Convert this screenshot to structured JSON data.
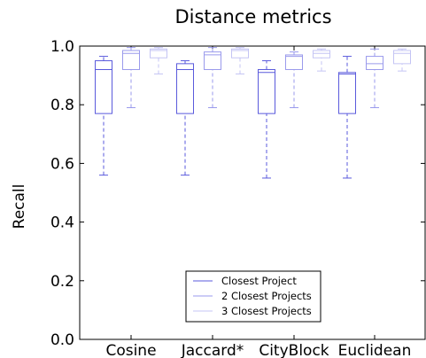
{
  "chart_data": {
    "type": "box",
    "title": "Distance metrics",
    "xlabel": "",
    "ylabel": "Recall",
    "ylim": [
      0.0,
      1.0
    ],
    "yticks": [
      "0.0",
      "0.2",
      "0.4",
      "0.6",
      "0.8",
      "1.0"
    ],
    "categories": [
      "Cosine",
      "Jaccard*",
      "CityBlock",
      "Euclidean"
    ],
    "legend_position": "lower-center",
    "series": [
      {
        "name": "Closest Project",
        "color": "#5a5adc",
        "boxes": [
          {
            "whisker_low": 0.56,
            "q1": 0.77,
            "median": 0.92,
            "q3": 0.95,
            "whisker_high": 0.965
          },
          {
            "whisker_low": 0.56,
            "q1": 0.77,
            "median": 0.92,
            "q3": 0.94,
            "whisker_high": 0.95
          },
          {
            "whisker_low": 0.55,
            "q1": 0.77,
            "median": 0.91,
            "q3": 0.92,
            "whisker_high": 0.95
          },
          {
            "whisker_low": 0.55,
            "q1": 0.77,
            "median": 0.905,
            "q3": 0.91,
            "whisker_high": 0.965
          }
        ]
      },
      {
        "name": "2 Closest Projects",
        "color": "#9a9aec",
        "boxes": [
          {
            "whisker_low": 0.79,
            "q1": 0.92,
            "median": 0.975,
            "q3": 0.985,
            "whisker_high": 0.995
          },
          {
            "whisker_low": 0.79,
            "q1": 0.92,
            "median": 0.97,
            "q3": 0.98,
            "whisker_high": 0.995
          },
          {
            "whisker_low": 0.79,
            "q1": 0.92,
            "median": 0.965,
            "q3": 0.97,
            "whisker_high": 0.98
          },
          {
            "whisker_low": 0.79,
            "q1": 0.92,
            "median": 0.94,
            "q3": 0.965,
            "whisker_high": 0.99
          }
        ]
      },
      {
        "name": "3 Closest Projects",
        "color": "#c4c4f4",
        "boxes": [
          {
            "whisker_low": 0.905,
            "q1": 0.96,
            "median": 0.985,
            "q3": 0.99,
            "whisker_high": 0.995
          },
          {
            "whisker_low": 0.905,
            "q1": 0.96,
            "median": 0.985,
            "q3": 0.99,
            "whisker_high": 0.995
          },
          {
            "whisker_low": 0.915,
            "q1": 0.96,
            "median": 0.975,
            "q3": 0.985,
            "whisker_high": 0.99
          },
          {
            "whisker_low": 0.915,
            "q1": 0.94,
            "median": 0.975,
            "q3": 0.985,
            "whisker_high": 0.99
          }
        ]
      }
    ]
  }
}
